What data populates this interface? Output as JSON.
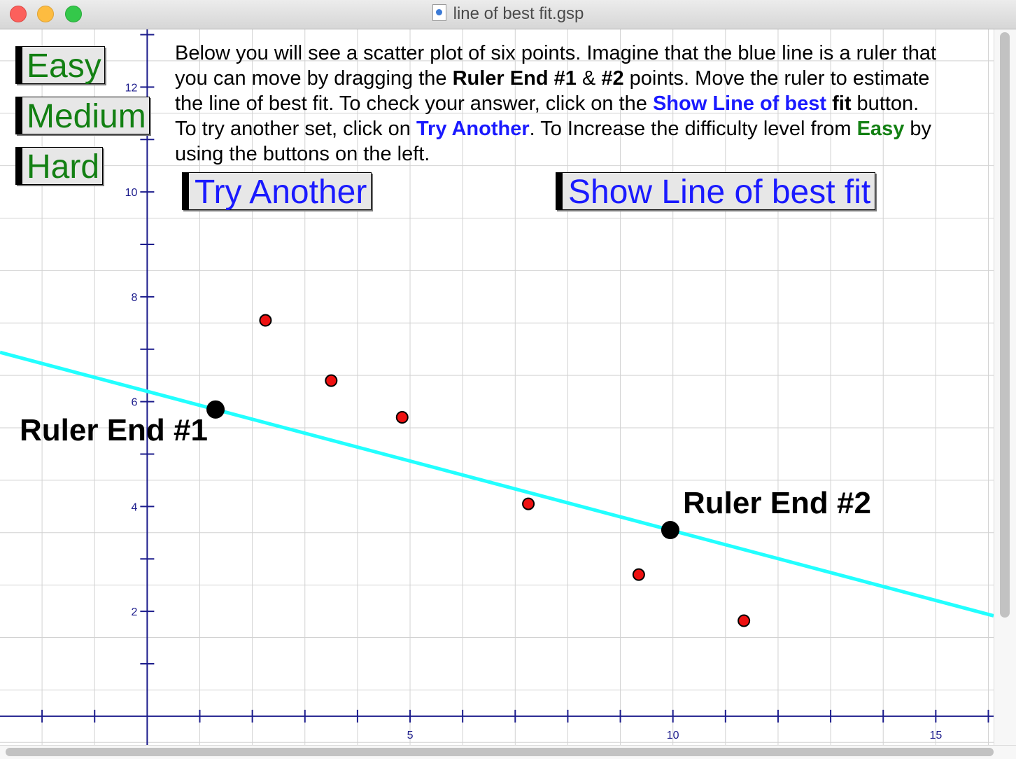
{
  "window": {
    "title": "line of best fit.gsp"
  },
  "buttons": {
    "easy": "Easy",
    "medium": "Medium",
    "hard": "Hard",
    "try_another": "Try Another",
    "show_line": "Show Line of best fit"
  },
  "instructions": {
    "t1": "Below you will see a scatter plot of six points. Imagine that the blue line is a ruler that you can move by dragging the ",
    "b1": "Ruler End #1",
    "t2": " & ",
    "b2": "#2",
    "t3": " points. Move the ruler to estimate the line of best fit.  To check your answer, click on the ",
    "blue1": "Show Line of best",
    "t4": " ",
    "b3": "fit",
    "t5": " button. To try another set, click on ",
    "blue2": "Try Another",
    "t6": ". To Increase the difficulty level from ",
    "green1": "Easy",
    "t7": " by using the buttons on the left."
  },
  "ruler": {
    "end1_label": "Ruler End #1",
    "end2_label": "Ruler End #2",
    "end1": {
      "x": 1.3,
      "y": 5.85
    },
    "end2": {
      "x": 9.95,
      "y": 3.55
    },
    "color": "#22ffff"
  },
  "chart_data": {
    "type": "scatter",
    "x_ticks": [
      5,
      10,
      15
    ],
    "y_ticks": [
      2,
      4,
      6,
      8,
      10,
      12
    ],
    "xlim": [
      -2.8,
      16.1
    ],
    "ylim": [
      -0.55,
      13.1
    ],
    "grid": true,
    "points": [
      {
        "x": 2.25,
        "y": 7.55
      },
      {
        "x": 3.5,
        "y": 6.4
      },
      {
        "x": 4.85,
        "y": 5.7
      },
      {
        "x": 7.25,
        "y": 4.05
      },
      {
        "x": 9.35,
        "y": 2.7
      },
      {
        "x": 11.35,
        "y": 1.82
      }
    ],
    "point_color": "#ee1111",
    "axis_color": "#1c1c8c",
    "grid_color": "#d2d2d2"
  }
}
